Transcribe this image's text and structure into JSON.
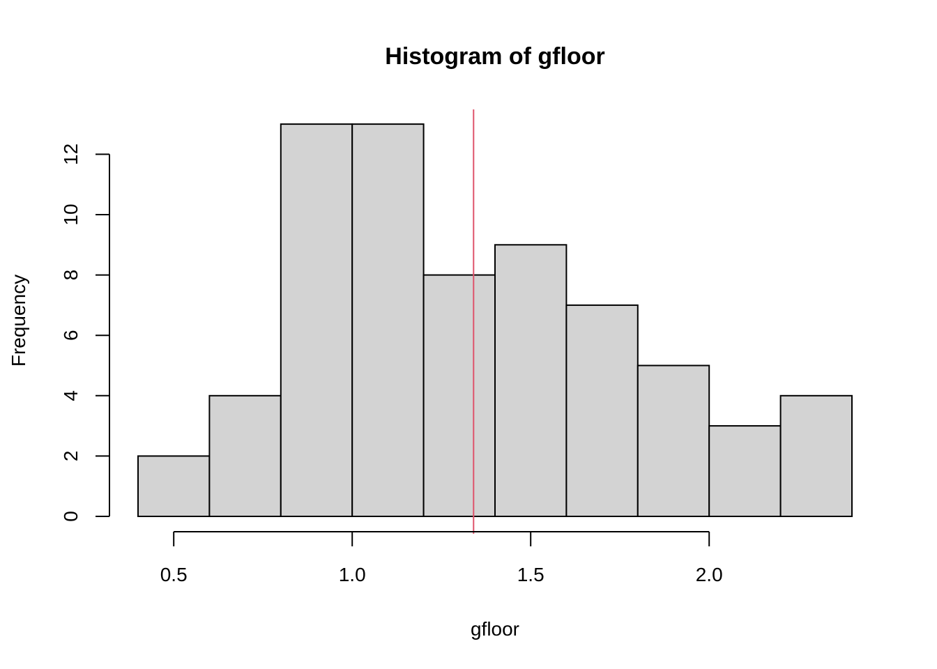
{
  "chart_data": {
    "type": "bar",
    "title": "Histogram of gfloor",
    "xlabel": "gfloor",
    "ylabel": "Frequency",
    "bins": [
      {
        "start": 0.4,
        "end": 0.6,
        "count": 2
      },
      {
        "start": 0.6,
        "end": 0.8,
        "count": 4
      },
      {
        "start": 0.8,
        "end": 1.0,
        "count": 13
      },
      {
        "start": 1.0,
        "end": 1.2,
        "count": 13
      },
      {
        "start": 1.2,
        "end": 1.4,
        "count": 8
      },
      {
        "start": 1.4,
        "end": 1.6,
        "count": 9
      },
      {
        "start": 1.6,
        "end": 1.8,
        "count": 7
      },
      {
        "start": 1.8,
        "end": 2.0,
        "count": 5
      },
      {
        "start": 2.0,
        "end": 2.2,
        "count": 3
      },
      {
        "start": 2.2,
        "end": 2.4,
        "count": 4
      }
    ],
    "xlim": [
      0.4,
      2.4
    ],
    "ylim": [
      0,
      13
    ],
    "xticks": [
      0.5,
      1.0,
      1.5,
      2.0
    ],
    "xtick_labels": [
      "0.5",
      "1.0",
      "1.5",
      "2.0"
    ],
    "yticks": [
      0,
      2,
      4,
      6,
      8,
      10,
      12
    ],
    "ytick_labels": [
      "0",
      "2",
      "4",
      "6",
      "8",
      "10",
      "12"
    ],
    "reference_line": {
      "x": 1.34,
      "color": "#DF536B"
    },
    "bar_fill": "#D3D3D3",
    "bar_stroke": "#000000",
    "grid": false,
    "legend": "none"
  }
}
